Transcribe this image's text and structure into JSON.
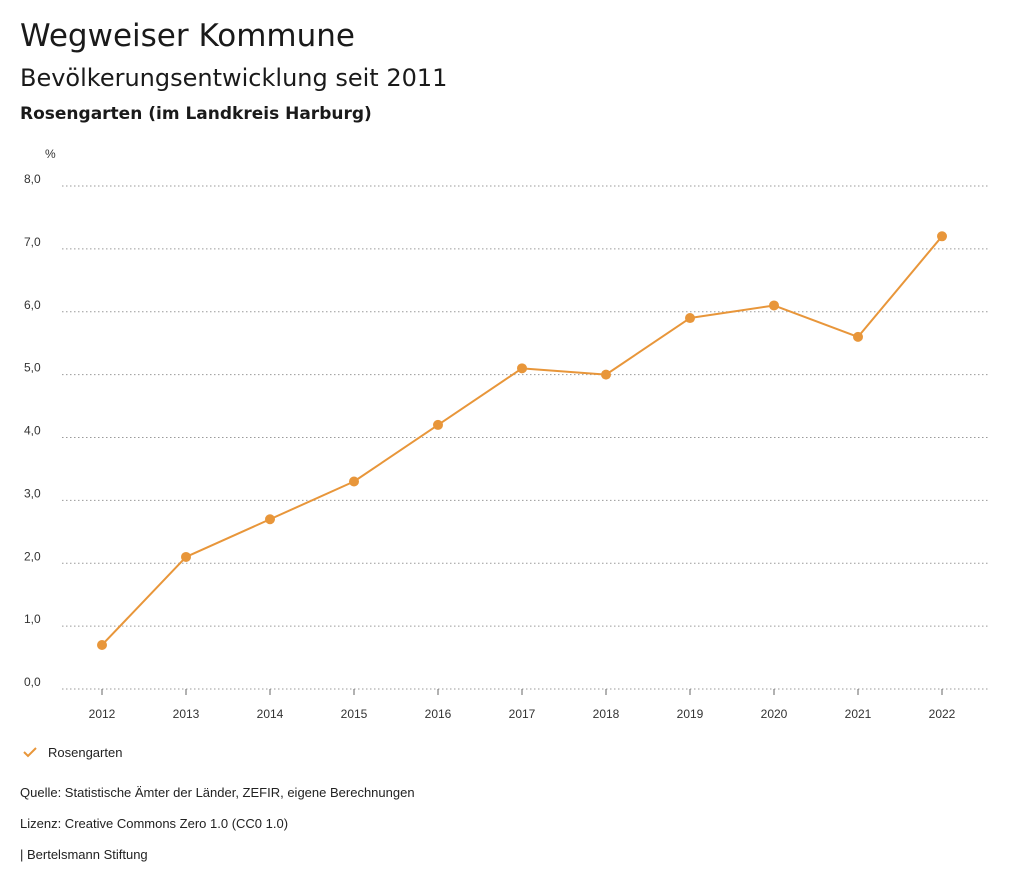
{
  "header": {
    "title": "Wegweiser Kommune",
    "subtitle": "Bevölkerungsentwicklung seit 2011",
    "region": "Rosengarten (im Landkreis Harburg)"
  },
  "chart_data": {
    "type": "line",
    "title": "Bevölkerungsentwicklung seit 2011",
    "ylabel": "%",
    "xlabel": "",
    "ylim": [
      0,
      8
    ],
    "yticks": [
      "0,0",
      "1,0",
      "2,0",
      "3,0",
      "4,0",
      "5,0",
      "6,0",
      "7,0",
      "8,0"
    ],
    "categories": [
      "2012",
      "2013",
      "2014",
      "2015",
      "2016",
      "2017",
      "2018",
      "2019",
      "2020",
      "2021",
      "2022"
    ],
    "series": [
      {
        "name": "Rosengarten",
        "color": "#e8963a",
        "values": [
          0.7,
          2.1,
          2.7,
          3.3,
          4.2,
          5.1,
          5.0,
          5.9,
          6.1,
          5.6,
          7.2
        ]
      }
    ],
    "grid": true,
    "legend": "bottom-left"
  },
  "legend": {
    "label": "Rosengarten",
    "icon": "check-icon"
  },
  "footer": {
    "source": "Quelle: Statistische Ämter der Länder, ZEFIR, eigene Berechnungen",
    "license": "Lizenz: Creative Commons Zero 1.0 (CC0 1.0)",
    "publisher": "| Bertelsmann Stiftung"
  }
}
